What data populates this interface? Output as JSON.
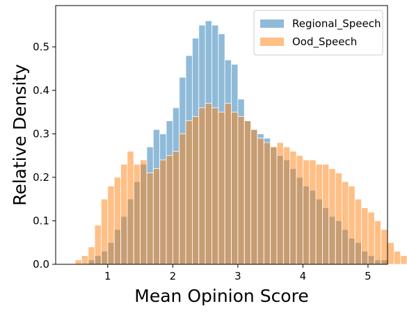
{
  "chart_data": {
    "type": "histogram",
    "xlabel": "Mean Opinion Score",
    "ylabel": "Relative Density",
    "xlim": [
      0.2,
      5.3
    ],
    "ylim": [
      0,
      0.595
    ],
    "x_ticks": [
      1,
      2,
      3,
      4,
      5
    ],
    "x_tick_labels": [
      "1",
      "2",
      "3",
      "4",
      "5"
    ],
    "y_ticks": [
      0.0,
      0.1,
      0.2,
      0.3,
      0.4,
      0.5
    ],
    "y_tick_labels": [
      "0.0",
      "0.1",
      "0.2",
      "0.3",
      "0.4",
      "0.5"
    ],
    "bin_width": 0.1,
    "grid": false,
    "legend_position": "top-right",
    "series": [
      {
        "name": "Regional_Speech",
        "color": "#1f77b4",
        "alpha": 0.5,
        "bin_start": 0.7,
        "values": [
          0.01,
          0.02,
          0.03,
          0.05,
          0.08,
          0.11,
          0.15,
          0.19,
          0.23,
          0.27,
          0.31,
          0.3,
          0.33,
          0.36,
          0.43,
          0.48,
          0.52,
          0.55,
          0.56,
          0.55,
          0.53,
          0.47,
          0.46,
          0.38,
          0.33,
          0.31,
          0.3,
          0.29,
          0.27,
          0.25,
          0.24,
          0.22,
          0.2,
          0.18,
          0.17,
          0.15,
          0.13,
          0.11,
          0.1,
          0.08,
          0.06,
          0.05,
          0.03,
          0.02,
          0.01,
          0.01
        ]
      },
      {
        "name": "Ood_Speech",
        "color": "#ff7f0e",
        "alpha": 0.5,
        "bin_start": 0.5,
        "values": [
          0.01,
          0.02,
          0.04,
          0.09,
          0.15,
          0.18,
          0.2,
          0.23,
          0.26,
          0.23,
          0.24,
          0.21,
          0.22,
          0.24,
          0.25,
          0.26,
          0.3,
          0.33,
          0.34,
          0.36,
          0.37,
          0.36,
          0.35,
          0.37,
          0.35,
          0.34,
          0.33,
          0.31,
          0.29,
          0.28,
          0.27,
          0.28,
          0.27,
          0.26,
          0.25,
          0.24,
          0.24,
          0.23,
          0.23,
          0.22,
          0.21,
          0.19,
          0.18,
          0.15,
          0.13,
          0.12,
          0.1,
          0.08,
          0.05,
          0.03,
          0.02,
          0.01,
          0.01,
          0.01,
          0.01,
          0.01
        ]
      }
    ]
  }
}
